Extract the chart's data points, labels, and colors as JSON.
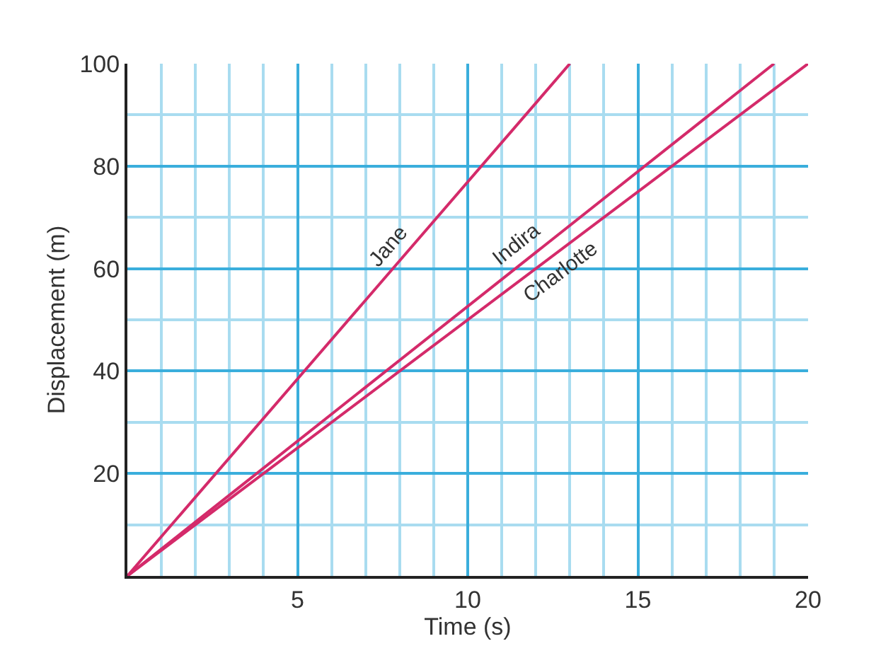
{
  "chart_data": {
    "type": "line",
    "xlabel": "Time (s)",
    "ylabel": "Displacement (m)",
    "series": [
      {
        "name": "Jane",
        "color": "#d42a6a",
        "x": [
          0,
          13
        ],
        "values": [
          0,
          100
        ]
      },
      {
        "name": "Indira",
        "color": "#d42a6a",
        "x": [
          0,
          19
        ],
        "values": [
          0,
          100
        ]
      },
      {
        "name": "Charlotte",
        "color": "#d42a6a",
        "x": [
          0,
          20
        ],
        "values": [
          0,
          100
        ]
      }
    ],
    "xlim": [
      0,
      20
    ],
    "ylim": [
      0,
      100
    ],
    "xticks": [
      {
        "value": 1,
        "label": null
      },
      {
        "value": 2,
        "label": null
      },
      {
        "value": 3,
        "label": null
      },
      {
        "value": 4,
        "label": null
      },
      5,
      {
        "value": 6,
        "label": null
      },
      {
        "value": 7,
        "label": null
      },
      {
        "value": 8,
        "label": null
      },
      {
        "value": 9,
        "label": null
      },
      10,
      {
        "value": 11,
        "label": null
      },
      {
        "value": 12,
        "label": null
      },
      {
        "value": 13,
        "label": null
      },
      {
        "value": 14,
        "label": null
      },
      15,
      {
        "value": 16,
        "label": null
      },
      {
        "value": 17,
        "label": null
      },
      {
        "value": 18,
        "label": null
      },
      {
        "value": 19,
        "label": null
      },
      20
    ],
    "yticks": [
      {
        "value": 10,
        "label": null
      },
      20,
      {
        "value": 30,
        "label": null
      },
      40,
      {
        "value": 50,
        "label": null
      },
      60,
      {
        "value": 70,
        "label": null
      },
      80,
      {
        "value": 90,
        "label": null
      },
      100
    ],
    "grid": true,
    "legend": false,
    "marker": "none",
    "line_style": "solid"
  }
}
